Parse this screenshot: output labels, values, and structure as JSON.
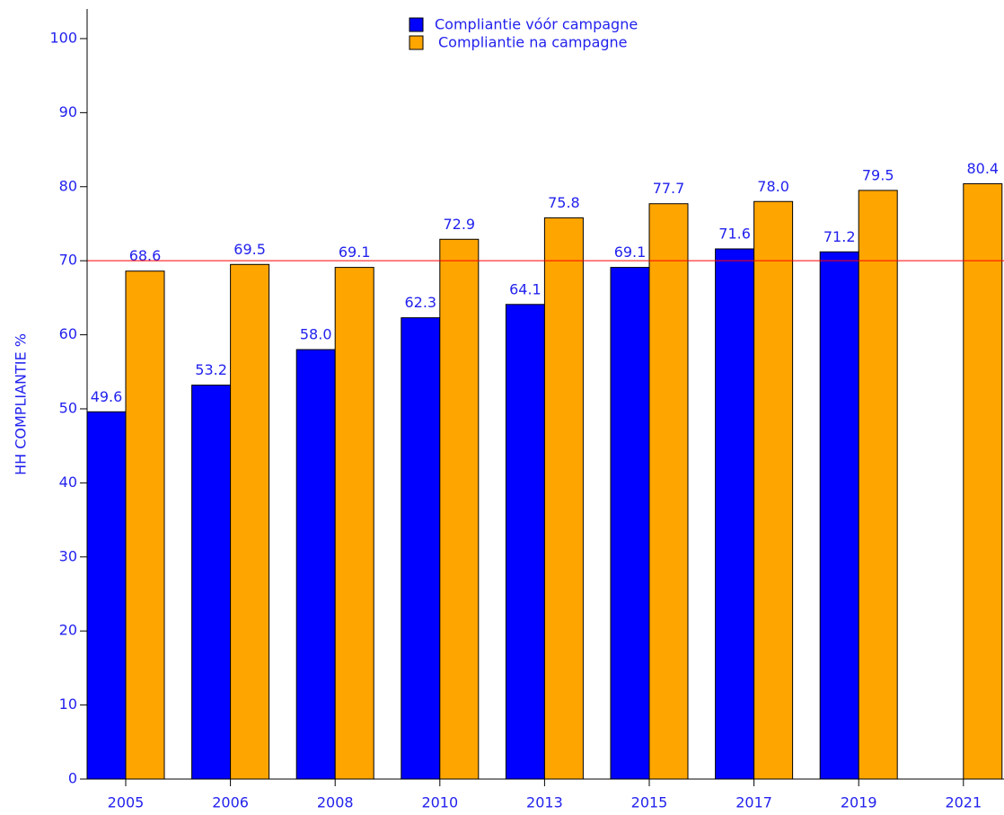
{
  "chart_data": {
    "type": "bar",
    "y_label": "HH COMPLIANTIE %",
    "categories": [
      "2005",
      "2006",
      "2008",
      "2010",
      "2013",
      "2015",
      "2017",
      "2019",
      "2021"
    ],
    "series": [
      {
        "name": "Compliantie vóór campagne",
        "color": "#0000ff",
        "values": [
          49.6,
          53.2,
          58.0,
          62.3,
          64.1,
          69.1,
          71.6,
          71.2,
          null
        ],
        "value_labels": [
          "49.6",
          "53.2",
          "58.0",
          "62.3",
          "64.1",
          "69.1",
          "71.6",
          "71.2",
          null
        ]
      },
      {
        "name": "Compliantie na campagne",
        "color": "#ffa500",
        "values": [
          68.6,
          69.5,
          69.1,
          72.9,
          75.8,
          77.7,
          78.0,
          79.5,
          80.4
        ],
        "value_labels": [
          "68.6",
          "69.5",
          "69.1",
          "72.9",
          "75.8",
          "77.7",
          "78.0",
          "79.5",
          "80.4"
        ]
      }
    ],
    "reference_line": {
      "value": 70,
      "color": "#ff0000"
    },
    "ylim": [
      0,
      104
    ],
    "yticks": [
      0,
      10,
      20,
      30,
      40,
      50,
      60,
      70,
      80,
      90,
      100
    ],
    "legend": "top"
  }
}
